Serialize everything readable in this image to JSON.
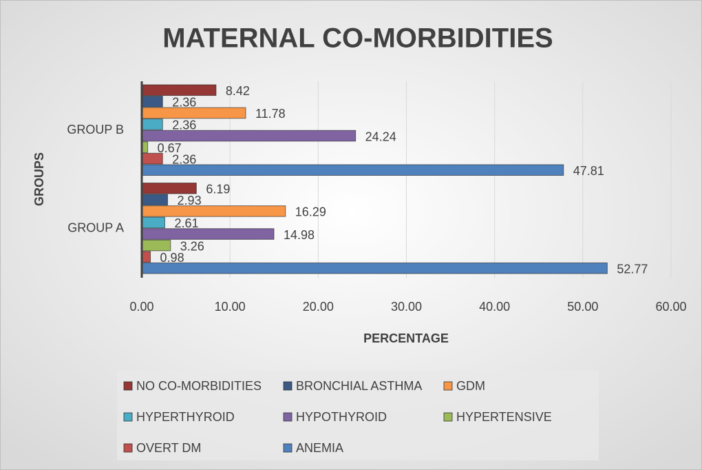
{
  "chart_data": {
    "type": "hbar",
    "title": "MATERNAL CO-MORBIDITIES",
    "x_label": "PERCENTAGE",
    "y_label": "GROUPS",
    "categories": [
      "GROUP A",
      "GROUP B"
    ],
    "series": [
      {
        "name": "NO CO-MORBIDITIES",
        "color": "#953735",
        "values": [
          6.19,
          8.42
        ]
      },
      {
        "name": "BRONCHIAL ASTHMA",
        "color": "#3A5A85",
        "values": [
          2.93,
          2.36
        ]
      },
      {
        "name": "GDM",
        "color": "#F79646",
        "values": [
          16.29,
          11.78
        ]
      },
      {
        "name": "HYPERTHYROID",
        "color": "#4BACC6",
        "values": [
          2.61,
          2.36
        ]
      },
      {
        "name": "HYPOTHYROID",
        "color": "#8064A2",
        "values": [
          14.98,
          24.24
        ]
      },
      {
        "name": "HYPERTENSIVE",
        "color": "#9BBB59",
        "values": [
          3.26,
          0.67
        ]
      },
      {
        "name": "OVERT DM",
        "color": "#C0504D",
        "values": [
          0.98,
          2.36
        ]
      },
      {
        "name": "ANEMIA",
        "color": "#4F81BD",
        "values": [
          52.77,
          47.81
        ]
      }
    ],
    "xlim": [
      0,
      60
    ],
    "xticks": [
      {
        "value": 0,
        "label": "0.00"
      },
      {
        "value": 10,
        "label": "10.00"
      },
      {
        "value": 20,
        "label": "20.00"
      },
      {
        "value": 30,
        "label": "30.00"
      },
      {
        "value": 40,
        "label": "40.00"
      },
      {
        "value": 50,
        "label": "50.00"
      },
      {
        "value": 60,
        "label": "60.00"
      }
    ],
    "grid": true,
    "legend": "bottom"
  }
}
